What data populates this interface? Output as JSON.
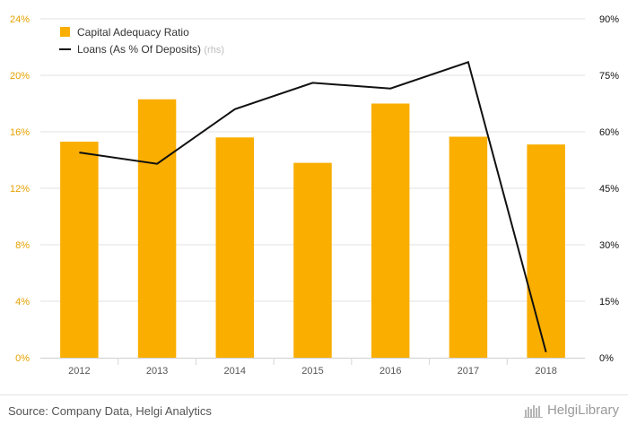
{
  "chart_data": {
    "type": "bar",
    "categories": [
      "2012",
      "2013",
      "2014",
      "2015",
      "2016",
      "2017",
      "2018"
    ],
    "series": [
      {
        "name": "Capital Adequacy Ratio",
        "kind": "bar",
        "axis": "left",
        "color": "#f9ae00",
        "values": [
          15.3,
          18.3,
          15.6,
          13.8,
          18.0,
          15.65,
          15.1
        ]
      },
      {
        "name": "Loans (As % Of Deposits)",
        "suffix": "(rhs)",
        "kind": "line",
        "axis": "right",
        "color": "#111111",
        "values": [
          54.5,
          51.5,
          66.0,
          73.0,
          71.5,
          78.5,
          1.5
        ]
      }
    ],
    "left_axis": {
      "min": 0,
      "max": 24,
      "ticks": [
        "0%",
        "4%",
        "8%",
        "12%",
        "16%",
        "20%",
        "24%"
      ],
      "color": "#e6a100"
    },
    "right_axis": {
      "min": 0,
      "max": 90,
      "ticks": [
        "0%",
        "15%",
        "30%",
        "45%",
        "60%",
        "75%",
        "90%"
      ],
      "color": "#111111"
    },
    "grid": true,
    "legend_position": "top-left"
  },
  "footer": {
    "source": "Source: Company Data, Helgi Analytics",
    "brand": "HelgiLibrary"
  }
}
